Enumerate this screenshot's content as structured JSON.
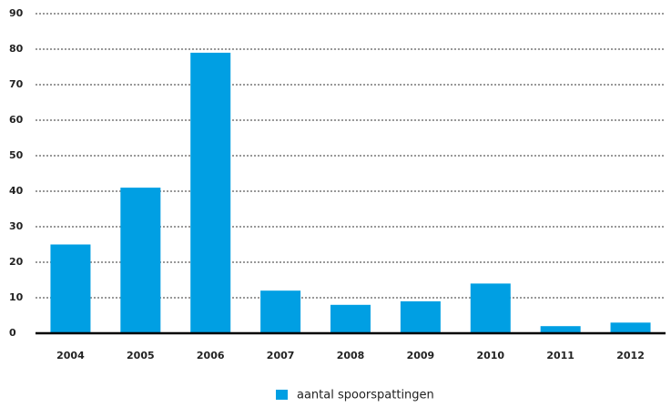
{
  "chart_data": {
    "type": "bar",
    "categories": [
      "2004",
      "2005",
      "2006",
      "2007",
      "2008",
      "2009",
      "2010",
      "2011",
      "2012"
    ],
    "series": [
      {
        "name": "aantal spoorspattingen",
        "color": "#009fe3",
        "values": [
          25,
          41,
          79,
          12,
          8,
          9,
          14,
          2,
          3
        ]
      }
    ],
    "ylim": [
      0,
      90
    ],
    "yticks": [
      0,
      10,
      20,
      30,
      40,
      50,
      60,
      70,
      80,
      90
    ],
    "grid": true,
    "legend": "bottom"
  }
}
